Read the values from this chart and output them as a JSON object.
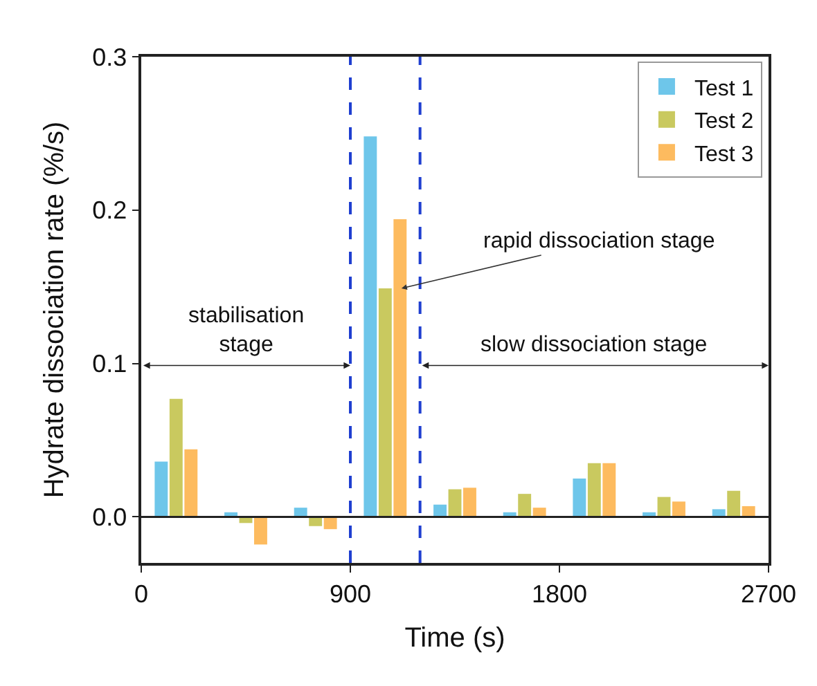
{
  "chart_data": {
    "type": "bar",
    "xlabel": "Time (s)",
    "ylabel": "Hydrate dissociation rate (%/s)",
    "x": [
      150,
      450,
      750,
      1050,
      1350,
      1650,
      1950,
      2250,
      2550
    ],
    "series": [
      {
        "name": "Test 1",
        "color": "#6ec6ea",
        "values": [
          0.036,
          0.003,
          0.006,
          0.248,
          0.008,
          0.003,
          0.025,
          0.003,
          0.005
        ]
      },
      {
        "name": "Test 2",
        "color": "#c9c95f",
        "values": [
          0.077,
          -0.004,
          -0.006,
          0.149,
          0.018,
          0.015,
          0.035,
          0.013,
          0.017
        ]
      },
      {
        "name": "Test 3",
        "color": "#fdbb5f",
        "values": [
          0.044,
          -0.018,
          -0.008,
          0.194,
          0.019,
          0.006,
          0.035,
          0.01,
          0.007
        ]
      }
    ],
    "xlim": [
      0,
      2700
    ],
    "xticks": [
      0,
      900,
      1800,
      2700
    ],
    "ylim": [
      -0.03,
      0.3
    ],
    "yticks": [
      {
        "value": 0,
        "label": "0.0"
      },
      {
        "value": 0.1,
        "label": "0.1"
      },
      {
        "value": 0.2,
        "label": "0.2"
      },
      {
        "value": 0.3,
        "label": "0.3"
      }
    ],
    "ref_lines": [
      {
        "axis": "x",
        "value": 900,
        "color": "#1f3fd0",
        "line_style": "dashed"
      },
      {
        "axis": "x",
        "value": 1200,
        "color": "#1f3fd0",
        "line_style": "dashed"
      },
      {
        "axis": "y",
        "value": 0,
        "color": "#222222",
        "line_style": "solid"
      }
    ],
    "annotations": [
      "stabilisation\nstage",
      {
        "text": "rapid dissociation stage",
        "x": 1120,
        "y": 0.149
      },
      "slow dissociation stage"
    ],
    "legend": "top right"
  }
}
